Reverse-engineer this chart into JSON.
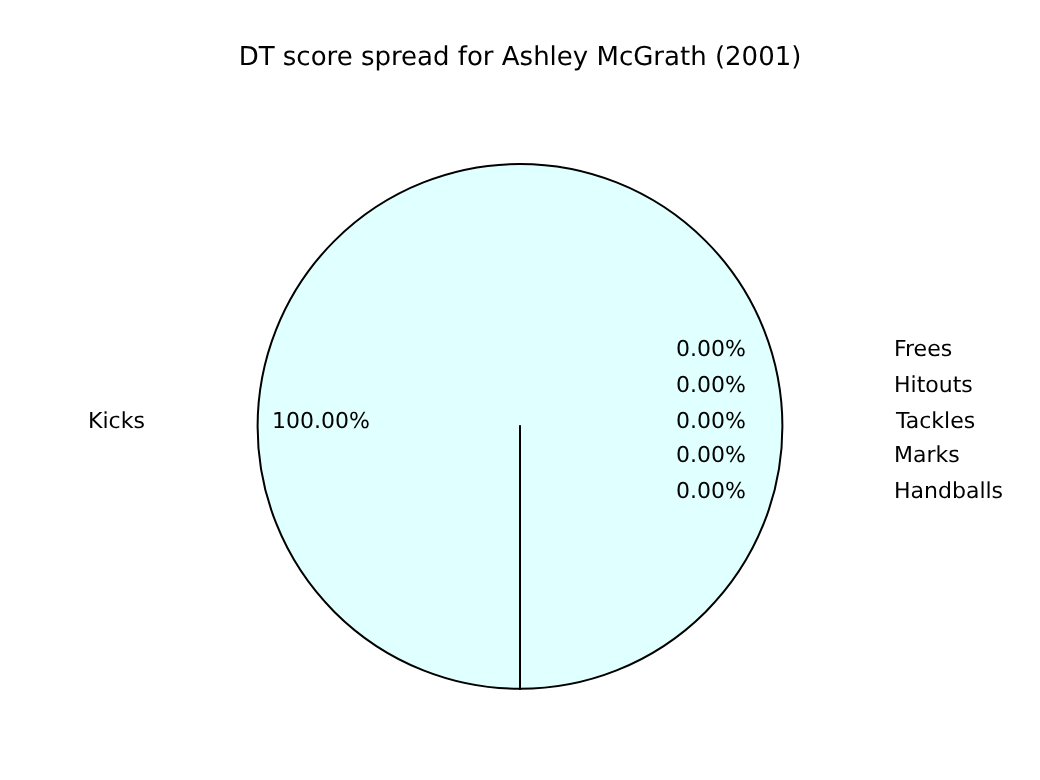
{
  "chart_data": {
    "type": "pie",
    "title": "DT score spread for Ashley McGrath (2001)",
    "categories": [
      "Kicks",
      "Handballs",
      "Marks",
      "Tackles",
      "Hitouts",
      "Frees"
    ],
    "values": [
      100,
      0,
      0,
      0,
      0,
      0
    ],
    "value_labels": [
      "100.00%",
      "0.00%",
      "0.00%",
      "0.00%",
      "0.00%",
      "0.00%"
    ],
    "colors": [
      "#e0ffff",
      "#ffe4c4",
      "#ffdab9",
      "#e6e6fa",
      "#f0fff0",
      "#fffacd"
    ]
  }
}
